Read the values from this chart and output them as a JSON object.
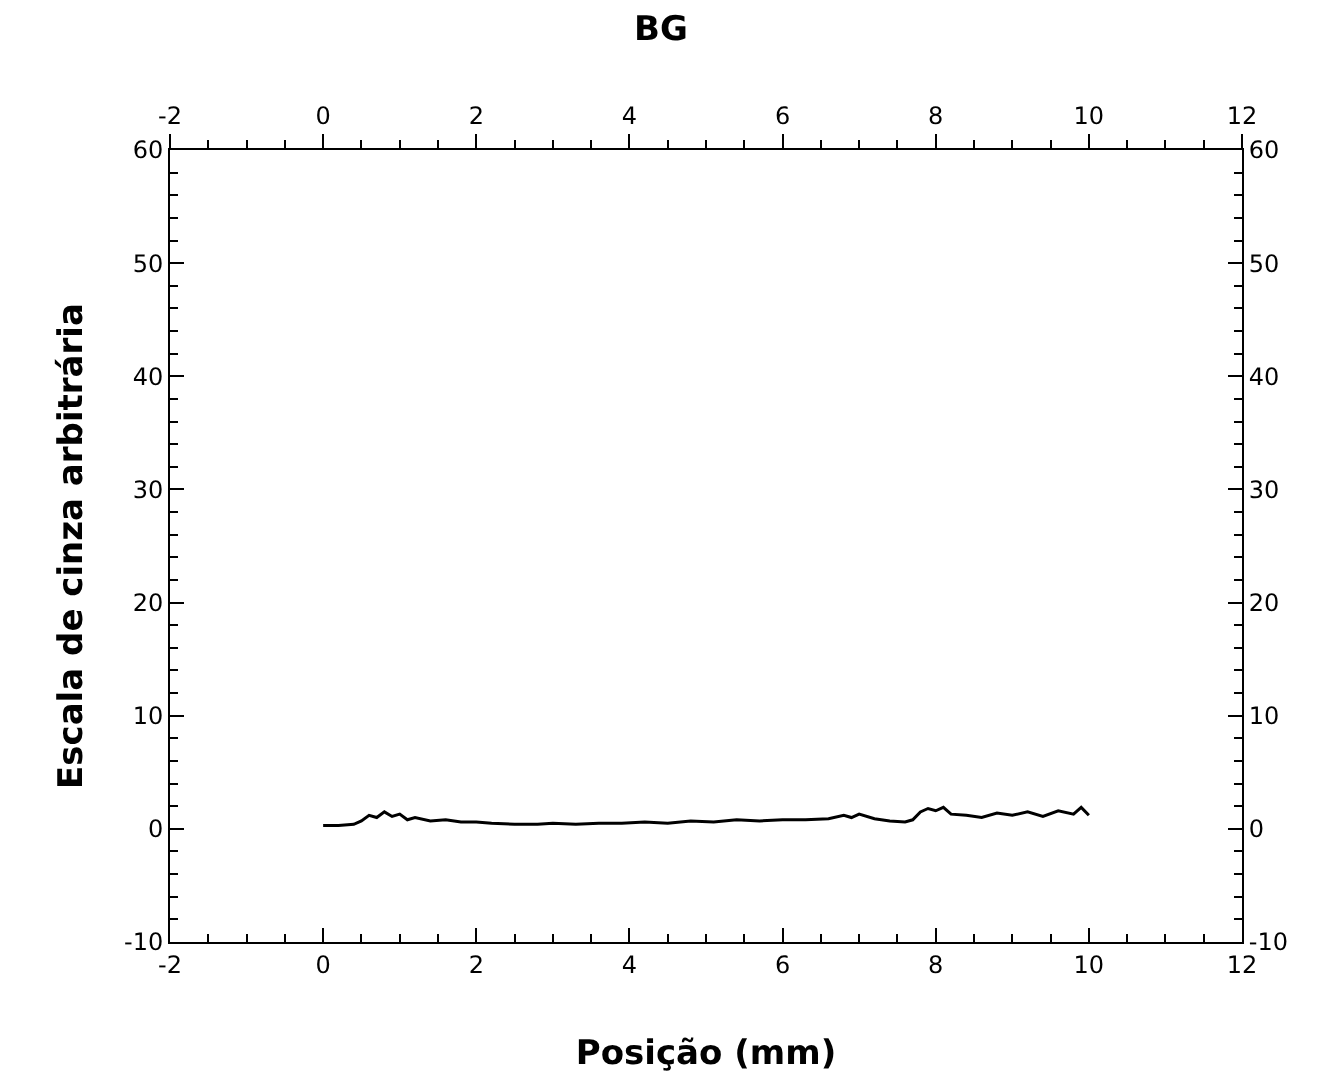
{
  "chart_data": {
    "type": "line",
    "title": "BG",
    "xlabel": "Posição (mm)",
    "ylabel": "Escala de cinza arbitrária",
    "x": [
      0,
      0.2,
      0.4,
      0.5,
      0.6,
      0.7,
      0.8,
      0.9,
      1.0,
      1.1,
      1.2,
      1.4,
      1.6,
      1.8,
      2.0,
      2.2,
      2.5,
      2.8,
      3.0,
      3.3,
      3.6,
      3.9,
      4.2,
      4.5,
      4.8,
      5.1,
      5.4,
      5.7,
      6.0,
      6.3,
      6.6,
      6.8,
      6.9,
      7.0,
      7.2,
      7.4,
      7.6,
      7.7,
      7.8,
      7.9,
      8.0,
      8.1,
      8.2,
      8.4,
      8.6,
      8.8,
      9.0,
      9.2,
      9.4,
      9.6,
      9.8,
      9.9,
      10.0
    ],
    "series": [
      {
        "color": "#000000",
        "values": [
          0.3,
          0.3,
          0.4,
          0.7,
          1.2,
          1.0,
          1.5,
          1.1,
          1.3,
          0.8,
          1.0,
          0.7,
          0.8,
          0.6,
          0.6,
          0.5,
          0.4,
          0.4,
          0.5,
          0.4,
          0.5,
          0.5,
          0.6,
          0.5,
          0.7,
          0.6,
          0.8,
          0.7,
          0.8,
          0.8,
          0.9,
          1.2,
          1.0,
          1.3,
          0.9,
          0.7,
          0.6,
          0.8,
          1.5,
          1.8,
          1.6,
          1.9,
          1.3,
          1.2,
          1.0,
          1.4,
          1.2,
          1.5,
          1.1,
          1.6,
          1.3,
          1.9,
          1.2
        ]
      }
    ],
    "xlim": [
      -2,
      12
    ],
    "xticks": [
      -2,
      0,
      2,
      4,
      6,
      8,
      10,
      12
    ],
    "x2lim": [
      -2,
      12
    ],
    "x2ticks": [
      -2,
      0,
      2,
      4,
      6,
      8,
      10,
      12
    ],
    "ylim": [
      -10,
      60
    ],
    "yticks": [
      -10,
      0,
      10,
      20,
      30,
      40,
      50,
      60
    ],
    "y2lim": [
      -10,
      60
    ],
    "y2ticks": [
      -10,
      0,
      10,
      20,
      30,
      40,
      50,
      60
    ],
    "marker": "none",
    "line_style": "solid"
  }
}
